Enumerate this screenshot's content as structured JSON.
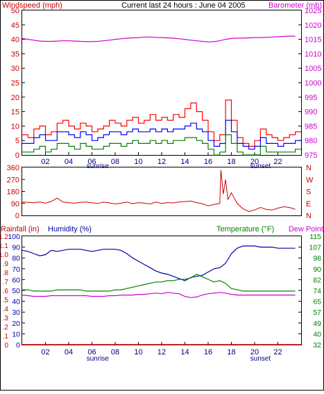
{
  "header": {
    "windspeed_label": "Windspeed (mph)",
    "title": "Current last 24 hours : June 04 2005",
    "barometer_label": "Barometer (mb)"
  },
  "colors": {
    "frame": "#000000",
    "gust": "#ff0000",
    "avg_wind": "#0000ff",
    "lull_wind": "#008000",
    "barometer": "#d000d0",
    "direction": "#cc0000",
    "humidity": "#0000aa",
    "temperature": "#008000",
    "dewpoint": "#d000d0",
    "rainfall": "#cc0000",
    "tick_time": "#000080"
  },
  "chart_data": [
    {
      "type": "line",
      "name": "wind-barometer",
      "xticks": [
        "02",
        "04",
        "06",
        "08",
        "10",
        "12",
        "14",
        "16",
        "18",
        "20",
        "22"
      ],
      "xlim": [
        0,
        24
      ],
      "annotations": [
        {
          "text": "sunrise",
          "x": 6.5
        },
        {
          "text": "sunset",
          "x": 20.5
        }
      ],
      "left_axis": {
        "ticks": [
          "0",
          "5",
          "10",
          "15",
          "20",
          "25",
          "30",
          "35",
          "40",
          "45",
          "50"
        ],
        "ylim": [
          0,
          50
        ],
        "label": "Windspeed (mph)"
      },
      "right_axis": {
        "ticks": [
          "975",
          "980",
          "985",
          "990",
          "995",
          "1000",
          "1005",
          "1010",
          "1015",
          "1020",
          "1025"
        ],
        "ylim": [
          975,
          1025
        ],
        "label": "Barometer (mb)"
      },
      "series": [
        {
          "key": "barometer",
          "axis": "right",
          "x": [
            0,
            0.5,
            1,
            1.5,
            2,
            2.5,
            3,
            3.5,
            4,
            4.5,
            5,
            5.5,
            6,
            6.5,
            7,
            7.5,
            8,
            8.5,
            9,
            9.5,
            10,
            10.5,
            11,
            11.5,
            12,
            12.5,
            13,
            13.5,
            14,
            14.5,
            15,
            15.5,
            16,
            16.5,
            17,
            17.5,
            18,
            18.5,
            19,
            19.5,
            20,
            20.5,
            21,
            21.5,
            22,
            22.5,
            23,
            23.5
          ],
          "y": [
            1015.3,
            1015,
            1014.7,
            1014.4,
            1014.3,
            1014.3,
            1014.4,
            1014.5,
            1014.5,
            1014.4,
            1014.3,
            1014.2,
            1014.2,
            1014.3,
            1014.5,
            1014.7,
            1015,
            1015.2,
            1015.4,
            1015.5,
            1015.6,
            1015.8,
            1015.8,
            1015.7,
            1015.6,
            1015.5,
            1015.4,
            1015.2,
            1015,
            1014.7,
            1014.5,
            1014.3,
            1014.1,
            1014.2,
            1014.5,
            1015,
            1015.3,
            1015.4,
            1015.4,
            1015.5,
            1015.6,
            1015.6,
            1015.7,
            1015.8,
            1015.9,
            1016,
            1016.1,
            1016.1
          ]
        },
        {
          "key": "gust",
          "axis": "left",
          "x": [
            0,
            0.5,
            1,
            1.5,
            2,
            2.5,
            3,
            3.5,
            4,
            4.5,
            5,
            5.5,
            6,
            6.5,
            7,
            7.5,
            8,
            8.5,
            9,
            9.5,
            10,
            10.5,
            11,
            11.5,
            12,
            12.5,
            13,
            13.5,
            14,
            14.5,
            15,
            15.5,
            16,
            16.5,
            17,
            17.5,
            18,
            18.5,
            19,
            19.5,
            20,
            20.5,
            21,
            21.5,
            22,
            22.5,
            23,
            23.5
          ],
          "y": [
            7,
            6,
            9,
            10,
            7,
            8,
            11,
            12,
            10,
            9,
            11,
            10,
            8,
            9,
            10,
            12,
            11,
            10,
            12,
            13,
            11,
            12,
            14,
            12,
            13,
            12,
            14,
            13,
            16,
            18,
            15,
            12,
            8,
            5,
            7,
            19,
            12,
            6,
            4,
            3,
            5,
            9,
            7,
            6,
            5,
            6,
            7,
            8
          ]
        },
        {
          "key": "avg_wind",
          "axis": "left",
          "x": [
            0,
            0.5,
            1,
            1.5,
            2,
            2.5,
            3,
            3.5,
            4,
            4.5,
            5,
            5.5,
            6,
            6.5,
            7,
            7.5,
            8,
            8.5,
            9,
            9.5,
            10,
            10.5,
            11,
            11.5,
            12,
            12.5,
            13,
            13.5,
            14,
            14.5,
            15,
            15.5,
            16,
            16.5,
            17,
            17.5,
            18,
            18.5,
            19,
            19.5,
            20,
            20.5,
            21,
            21.5,
            22,
            22.5,
            23,
            23.5
          ],
          "y": [
            4,
            4,
            6,
            7,
            5,
            5,
            8,
            8,
            7,
            6,
            8,
            7,
            5,
            6,
            7,
            8,
            8,
            7,
            8,
            9,
            8,
            8,
            9,
            8,
            9,
            8,
            9,
            9,
            10,
            11,
            9,
            8,
            5,
            3,
            4,
            12,
            8,
            4,
            3,
            2,
            3,
            6,
            4,
            4,
            3,
            4,
            4,
            5
          ]
        },
        {
          "key": "lull_wind",
          "axis": "left",
          "x": [
            0,
            0.5,
            1,
            1.5,
            2,
            2.5,
            3,
            3.5,
            4,
            4.5,
            5,
            5.5,
            6,
            6.5,
            7,
            7.5,
            8,
            8.5,
            9,
            9.5,
            10,
            10.5,
            11,
            11.5,
            12,
            12.5,
            13,
            13.5,
            14,
            14.5,
            15,
            15.5,
            16,
            16.5,
            17,
            17.5,
            18,
            18.5,
            19,
            19.5,
            20,
            20.5,
            21,
            21.5,
            22,
            22.5,
            23,
            23.5
          ],
          "y": [
            1,
            1,
            2,
            3,
            1,
            2,
            4,
            4,
            3,
            2,
            4,
            3,
            2,
            2,
            3,
            4,
            4,
            3,
            4,
            5,
            4,
            4,
            5,
            4,
            5,
            4,
            5,
            5,
            6,
            6,
            5,
            4,
            2,
            0,
            1,
            7,
            4,
            1,
            0,
            0,
            0,
            3,
            1,
            1,
            1,
            1,
            1,
            2
          ]
        }
      ]
    },
    {
      "type": "line",
      "name": "wind-direction",
      "left_axis": {
        "ticks": [
          "0",
          "90",
          "180",
          "270",
          "360"
        ],
        "ylim": [
          0,
          360
        ]
      },
      "right_axis": {
        "ticks": [
          "N",
          "E",
          "S",
          "W",
          "N"
        ]
      },
      "series": [
        {
          "key": "direction",
          "x": [
            0,
            0.5,
            1,
            1.5,
            2,
            2.5,
            3,
            3.5,
            4,
            4.5,
            5,
            5.5,
            6,
            6.5,
            7,
            7.5,
            8,
            8.5,
            9,
            9.5,
            10,
            10.5,
            11,
            11.5,
            12,
            12.5,
            13,
            13.5,
            14,
            14.5,
            15,
            15.5,
            16,
            16.5,
            17,
            17.1,
            17.3,
            17.5,
            17.7,
            18,
            18.5,
            19,
            19.5,
            20,
            20.5,
            21,
            21.5,
            22,
            22.5,
            23,
            23.5
          ],
          "y": [
            100,
            98,
            95,
            100,
            92,
            105,
            130,
            100,
            96,
            92,
            98,
            100,
            95,
            90,
            100,
            94,
            86,
            92,
            100,
            88,
            96,
            92,
            86,
            100,
            90,
            96,
            94,
            100,
            104,
            108,
            96,
            88,
            72,
            82,
            90,
            340,
            160,
            270,
            120,
            170,
            90,
            50,
            30,
            40,
            60,
            45,
            40,
            55,
            65,
            60,
            45
          ]
        }
      ]
    },
    {
      "type": "line",
      "name": "rain-humidity-temperature",
      "xticks": [
        "02",
        "04",
        "06",
        "08",
        "10",
        "12",
        "14",
        "16",
        "18",
        "20",
        "22"
      ],
      "annotations": [
        {
          "text": "sunrise",
          "x": 6.5
        },
        {
          "text": "sunset",
          "x": 20.5
        }
      ],
      "labels": {
        "rainfall": "Rainfall (in)",
        "humidity": "Humidity (%)",
        "temperature": "Temperature (°F)",
        "dewpoint": "Dew Point"
      },
      "rain_axis": {
        "ticks": [
          "0",
          ".1",
          ".2",
          ".3",
          ".4",
          ".5",
          ".6",
          ".7",
          ".8",
          ".9",
          "1.0",
          "1.1",
          "1.2"
        ],
        "ylim": [
          0,
          1.2
        ]
      },
      "humidity_axis": {
        "ticks": [
          "0",
          "10",
          "20",
          "30",
          "40",
          "50",
          "60",
          "70",
          "80",
          "90",
          "100"
        ],
        "ylim": [
          0,
          100
        ]
      },
      "temp_axis": {
        "ticks": [
          "32",
          "40",
          "49",
          "57",
          "65",
          "74",
          "82",
          "90",
          "98",
          "107",
          "115"
        ],
        "ylim": [
          32,
          115
        ]
      },
      "series": [
        {
          "key": "humidity",
          "axis": "humidity",
          "x": [
            0,
            0.5,
            1,
            1.5,
            2,
            2.5,
            3,
            3.5,
            4,
            4.5,
            5,
            5.5,
            6,
            6.5,
            7,
            7.5,
            8,
            8.5,
            9,
            9.5,
            10,
            10.5,
            11,
            11.5,
            12,
            12.5,
            13,
            13.5,
            14,
            14.5,
            15,
            15.5,
            16,
            16.5,
            17,
            17.5,
            18,
            18.5,
            19,
            19.5,
            20,
            20.5,
            21,
            21.5,
            22,
            22.5,
            23,
            23.5
          ],
          "y": [
            87,
            86,
            84,
            82,
            83,
            87,
            86,
            87,
            88,
            88,
            88,
            87,
            86,
            87,
            88,
            88,
            88,
            87,
            84,
            80,
            77,
            74,
            71,
            68,
            66,
            65,
            63,
            61,
            59,
            62,
            63,
            64,
            67,
            70,
            71,
            75,
            84,
            89,
            91,
            91,
            91,
            90,
            90,
            90,
            89,
            89,
            89,
            89
          ]
        },
        {
          "key": "temperature",
          "axis": "temp",
          "x": [
            0,
            0.5,
            1,
            1.5,
            2,
            2.5,
            3,
            3.5,
            4,
            4.5,
            5,
            5.5,
            6,
            6.5,
            7,
            7.5,
            8,
            8.5,
            9,
            9.5,
            10,
            10.5,
            11,
            11.5,
            12,
            12.5,
            13,
            13.5,
            14,
            14.5,
            15,
            15.5,
            16,
            16.5,
            17,
            17.5,
            18,
            18.5,
            19,
            19.5,
            20,
            20.5,
            21,
            21.5,
            22,
            22.5,
            23,
            23.5
          ],
          "y": [
            74,
            74,
            73,
            73,
            73,
            73,
            74,
            74,
            74,
            74,
            74,
            73,
            73,
            73,
            73,
            73,
            74,
            74,
            75,
            76,
            77,
            78,
            79,
            80,
            80,
            81,
            81,
            82,
            82,
            83,
            86,
            84,
            82,
            80,
            81,
            79,
            75,
            74,
            73,
            73,
            73,
            73,
            73,
            73,
            73,
            73,
            73,
            73
          ]
        },
        {
          "key": "dewpoint",
          "axis": "temp",
          "x": [
            0,
            0.5,
            1,
            1.5,
            2,
            2.5,
            3,
            3.5,
            4,
            4.5,
            5,
            5.5,
            6,
            6.5,
            7,
            7.5,
            8,
            8.5,
            9,
            9.5,
            10,
            10.5,
            11,
            11.5,
            12,
            12.5,
            13,
            13.5,
            14,
            14.5,
            15,
            15.5,
            16,
            16.5,
            17,
            17.5,
            18,
            18.5,
            19,
            19.5,
            20,
            20.5,
            21,
            21.5,
            22,
            22.5,
            23,
            23.5
          ],
          "y": [
            70,
            69.5,
            69,
            69,
            69,
            69.5,
            69.5,
            69.5,
            69.5,
            69.5,
            69.5,
            69.5,
            69,
            69,
            69,
            69.5,
            69.5,
            70,
            70,
            70,
            70.5,
            70.5,
            71,
            71.5,
            71,
            72,
            71.5,
            71,
            69,
            68,
            68.5,
            70,
            71,
            71.5,
            72,
            71.5,
            70.5,
            70,
            70,
            70,
            70,
            70,
            70,
            70,
            70,
            70,
            70,
            70
          ]
        },
        {
          "key": "rainfall",
          "axis": "rain",
          "x": [
            0,
            24
          ],
          "y": [
            0,
            0
          ]
        }
      ]
    }
  ]
}
